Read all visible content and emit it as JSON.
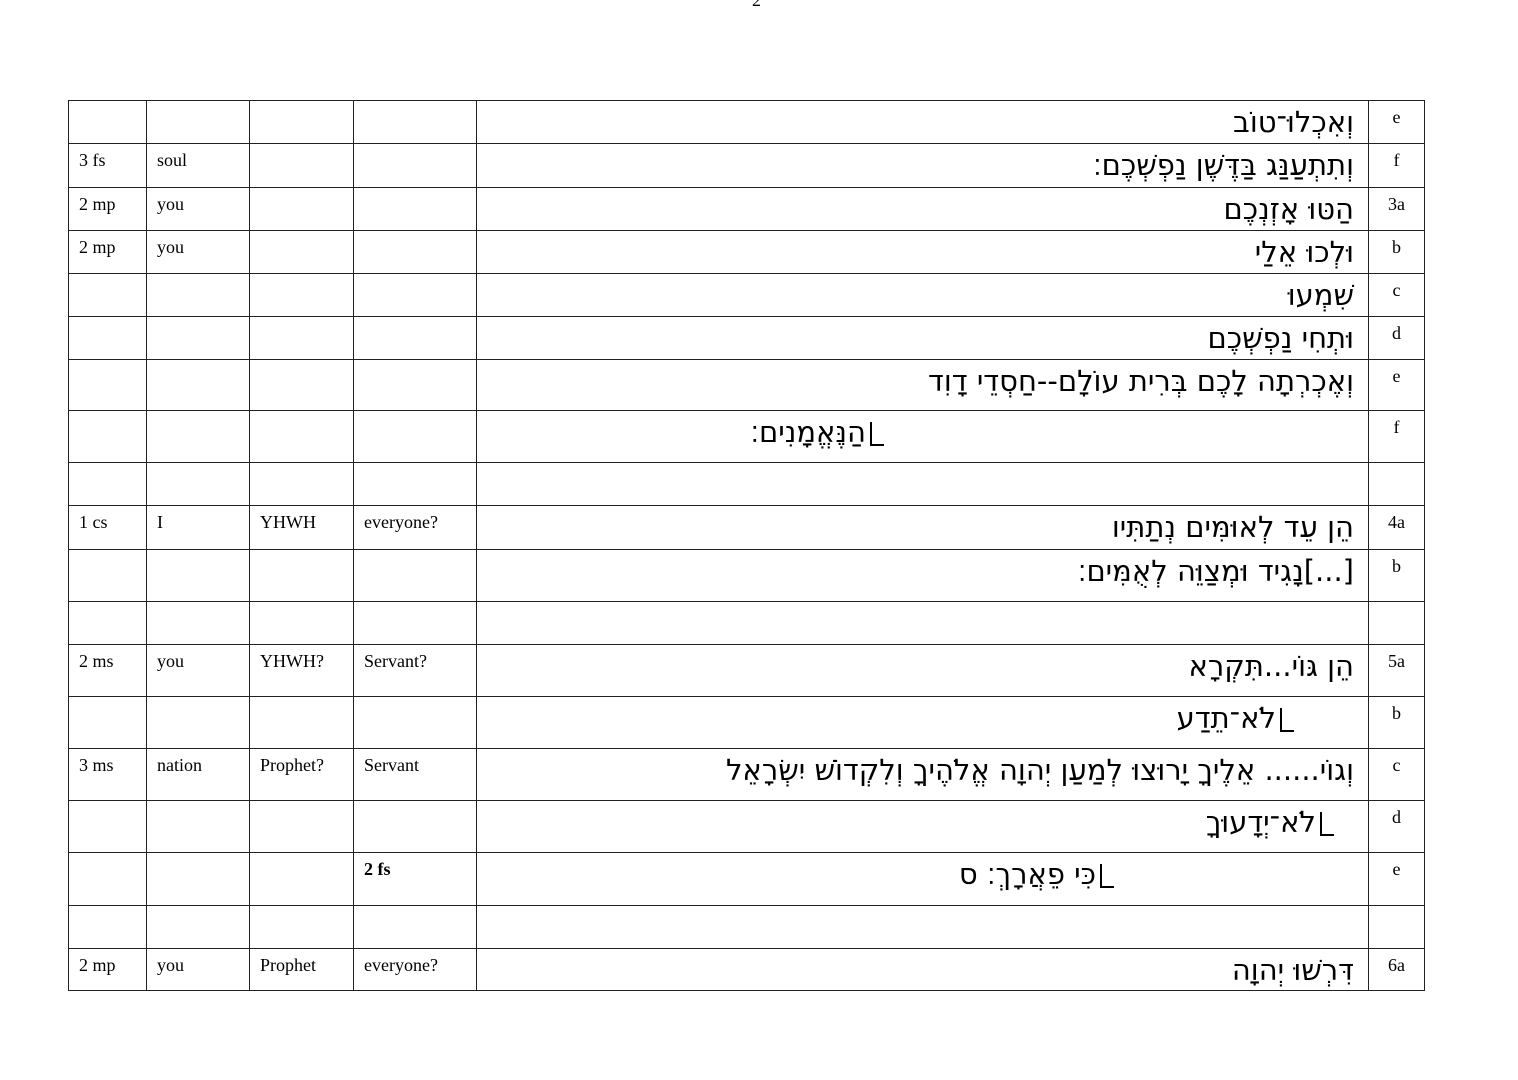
{
  "page_number": "2",
  "table": {
    "rows": [
      {
        "text": "וְאִכְלוּ־טוֹב",
        "verse": "e"
      },
      {
        "parsing": "3 fs",
        "subject": "soul",
        "text": "וְתִתְעַנַּג בַּדֶּשֶׁן נַפְשְׁכֶם׃",
        "verse": "f"
      },
      {
        "parsing": "2 mp",
        "subject": "you",
        "text": "הַטּוּ אָזְנְכֶם",
        "verse": "3a"
      },
      {
        "parsing": "2 mp",
        "subject": "you",
        "text": "וּלְכוּ אֵלַי",
        "verse": "b"
      },
      {
        "text": "שִׁמְעוּ",
        "verse": "c"
      },
      {
        "text": "וּתְחִי נַפְשְׁכֶם",
        "verse": "d"
      },
      {
        "text": "וְאֶכְרְתָה לָכֶם בְּרִית עוֹלָם--חַסְדֵי דָוִד",
        "verse": "e"
      },
      {
        "text": "הַנֶּאֱמָנִים׃",
        "verse": "f",
        "continuation": true
      },
      {},
      {
        "parsing": "1 cs",
        "subject": "I",
        "speaker": "YHWH",
        "addressee": "everyone?",
        "text": "הֵן עֵד לְאוּמִּים נְתַתִּיו",
        "verse": "4a"
      },
      {
        "text": "[...]נָגִיד וּמְצַוֵּה לְאֻמִּים׃",
        "verse": "b"
      },
      {},
      {
        "parsing": "2 ms",
        "subject": "you",
        "speaker": "YHWH?",
        "addressee": "Servant?",
        "text": "הֵן גּוֹי...תִּקְרָא",
        "verse": "5a"
      },
      {
        "text": "לֹא־תֵדַע",
        "verse": "b",
        "continuation": true
      },
      {
        "parsing": "3 ms",
        "subject": "nation",
        "speaker": "Prophet?",
        "addressee": "Servant",
        "text": "וְגוֹי...... אֵלֶיךָ יָרוּצוּ לְמַעַן יְהוָה אֱלֹהֶיךָ וְלִקְדוֹשׁ יִשְׂרָאֵל",
        "verse": "c"
      },
      {
        "text": "לֹא־יְדָעוּךָ",
        "verse": "d",
        "continuation": true
      },
      {
        "addressee": "2 fs",
        "bold": true,
        "text": "כִּי פֵאֲרָךְ׃ ס",
        "verse": "e",
        "continuation": true
      },
      {},
      {
        "parsing": "2 mp",
        "subject": "you",
        "speaker": "Prophet",
        "addressee": "everyone?",
        "text": "דִּרְשׁוּ יְהוָה",
        "verse": "6a"
      }
    ]
  }
}
